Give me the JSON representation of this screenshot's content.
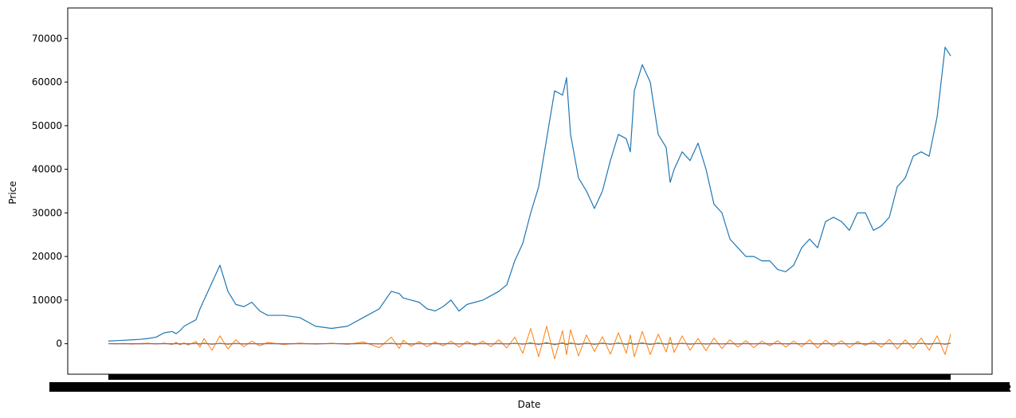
{
  "chart_data": {
    "type": "line",
    "title": "",
    "xlabel": "Date",
    "ylabel": "Price",
    "x_tick_labels_note": "2",
    "ylim": [
      -7000,
      77000
    ],
    "grid": false,
    "legend": "none",
    "y_ticks": [
      0,
      10000,
      20000,
      30000,
      40000,
      50000,
      60000,
      70000
    ],
    "y_tick_labels": [
      "0",
      "10000",
      "20000",
      "30000",
      "40000",
      "50000",
      "60000",
      "70000"
    ],
    "x": [
      0,
      10,
      20,
      30,
      40,
      50,
      60,
      70,
      80,
      85,
      90,
      95,
      100,
      110,
      115,
      120,
      130,
      140,
      150,
      160,
      170,
      180,
      190,
      200,
      220,
      240,
      260,
      280,
      300,
      320,
      340,
      355,
      365,
      370,
      380,
      390,
      400,
      410,
      420,
      430,
      440,
      450,
      460,
      470,
      480,
      490,
      500,
      510,
      520,
      530,
      540,
      550,
      560,
      570,
      575,
      580,
      590,
      600,
      610,
      620,
      630,
      640,
      650,
      655,
      660,
      670,
      680,
      690,
      700,
      705,
      710,
      720,
      730,
      740,
      750,
      760,
      770,
      780,
      790,
      800,
      810,
      820,
      830,
      840,
      850,
      860,
      870,
      880,
      890,
      900,
      910,
      920,
      930,
      940,
      950,
      960,
      970,
      980,
      990,
      1000,
      1010,
      1020,
      1030,
      1040,
      1050,
      1057
    ],
    "series": [
      {
        "color": "#1f77b4",
        "values": [
          600,
          700,
          800,
          900,
          1000,
          1200,
          1500,
          2500,
          2800,
          2300,
          3000,
          4000,
          4500,
          5500,
          8000,
          10000,
          14000,
          18000,
          12000,
          9000,
          8500,
          9500,
          7500,
          6500,
          6500,
          6000,
          4000,
          3500,
          4000,
          6000,
          8000,
          12000,
          11500,
          10500,
          10000,
          9500,
          8000,
          7500,
          8500,
          10000,
          7500,
          9000,
          9500,
          10000,
          11000,
          12000,
          13500,
          19000,
          23000,
          30000,
          36000,
          47000,
          58000,
          57000,
          61000,
          48000,
          38000,
          35000,
          31000,
          35000,
          42000,
          48000,
          47000,
          44000,
          58000,
          64000,
          60000,
          48000,
          45000,
          37000,
          40000,
          44000,
          42000,
          46000,
          40000,
          32000,
          30000,
          24000,
          22000,
          20000,
          20000,
          19000,
          19000,
          17000,
          16500,
          18000,
          22000,
          24000,
          22000,
          28000,
          29000,
          28000,
          26000,
          30000,
          30000,
          26000,
          27000,
          29000,
          36000,
          38000,
          43000,
          44000,
          43000,
          52000,
          68000,
          66000
        ]
      },
      {
        "color": "#ff7f0e",
        "values": [
          50,
          -60,
          80,
          -100,
          60,
          120,
          -80,
          150,
          -200,
          300,
          -250,
          200,
          -300,
          500,
          -800,
          1200,
          -1500,
          1800,
          -1200,
          900,
          -700,
          600,
          -500,
          300,
          -200,
          150,
          -100,
          120,
          -150,
          400,
          -900,
          1500,
          -1100,
          800,
          -600,
          500,
          -700,
          400,
          -500,
          600,
          -800,
          500,
          -400,
          600,
          -700,
          900,
          -1000,
          1500,
          -2200,
          3500,
          -3000,
          4000,
          -3500,
          3000,
          -2500,
          3200,
          -2800,
          2000,
          -1800,
          1600,
          -2400,
          2500,
          -2200,
          2000,
          -3000,
          2800,
          -2500,
          2200,
          -1900,
          1500,
          -2000,
          1800,
          -1500,
          1200,
          -1600,
          1300,
          -1100,
          900,
          -800,
          700,
          -900,
          600,
          -500,
          700,
          -800,
          600,
          -700,
          900,
          -1000,
          800,
          -600,
          700,
          -900,
          500,
          -400,
          600,
          -800,
          1000,
          -1200,
          900,
          -1100,
          1300,
          -1500,
          1800,
          -2500,
          2200
        ]
      },
      {
        "color": "#2ca02c",
        "values": [
          0,
          20,
          -20,
          30,
          -30,
          40,
          -40,
          60,
          -60,
          80,
          -80,
          50,
          -50,
          100,
          -100,
          150,
          -150,
          120,
          -120,
          90,
          -90,
          60,
          -60,
          40,
          -40,
          30,
          -30,
          50,
          -50,
          80,
          -80,
          120,
          -120,
          100,
          -100,
          70,
          -70,
          60,
          -60,
          80,
          -80,
          60,
          -60,
          70,
          -70,
          90,
          -90,
          130,
          -130,
          200,
          -200,
          250,
          -250,
          220,
          -220,
          200,
          -200,
          180,
          -180,
          160,
          -160,
          180,
          -180,
          170,
          -170,
          190,
          -190,
          160,
          -160,
          140,
          -140,
          120,
          -120,
          100,
          -100,
          90,
          -90,
          80,
          -80,
          70,
          -70,
          60,
          -60,
          70,
          -70,
          60,
          -60,
          80,
          -80,
          70,
          -70,
          60,
          -60,
          70,
          -70,
          80,
          -80,
          90,
          -90,
          100,
          -100,
          120,
          -120,
          150,
          -150,
          140
        ]
      },
      {
        "color": "#d62728",
        "values": [
          0,
          10,
          -10,
          15,
          -15,
          20,
          -20,
          25,
          -25,
          30,
          -30,
          20,
          -20,
          40,
          -40,
          60,
          -60,
          50,
          -50,
          40,
          -40,
          30,
          -30,
          20,
          -20,
          15,
          -15,
          20,
          -20,
          30,
          -30,
          50,
          -50,
          40,
          -40,
          30,
          -30,
          25,
          -25,
          30,
          -30,
          25,
          -25,
          30,
          -30,
          35,
          -35,
          50,
          -50,
          80,
          -80,
          100,
          -100,
          90,
          -90,
          80,
          -80,
          70,
          -70,
          60,
          -60,
          70,
          -70,
          65,
          -65,
          75,
          -75,
          60,
          -60,
          55,
          -55,
          50,
          -50,
          40,
          -40,
          35,
          -35,
          30,
          -30,
          25,
          -25,
          20,
          -20,
          25,
          -25,
          20,
          -20,
          30,
          -30,
          25,
          -25,
          20,
          -20,
          25,
          -25,
          30,
          -30,
          35,
          -35,
          40,
          -40,
          45,
          -45,
          60,
          -60,
          55
        ]
      },
      {
        "color": "#9467bd",
        "values": [
          0,
          5,
          -5,
          8,
          -8,
          10,
          -10,
          12,
          -12,
          15,
          -15,
          10,
          -10,
          20,
          -20,
          30,
          -30,
          25,
          -25,
          20,
          -20,
          15,
          -15,
          10,
          -10,
          8,
          -8,
          10,
          -10,
          15,
          -15,
          25,
          -25,
          20,
          -20,
          15,
          -15,
          12,
          -12,
          15,
          -15,
          12,
          -12,
          15,
          -15,
          18,
          -18,
          25,
          -25,
          40,
          -40,
          50,
          -50,
          45,
          -45,
          40,
          -40,
          35,
          -35,
          30,
          -30,
          35,
          -35,
          32,
          -32,
          38,
          -38,
          30,
          -30,
          28,
          -28,
          25,
          -25,
          20,
          -20,
          18,
          -18,
          15,
          -15,
          12,
          -12,
          10,
          -10,
          12,
          -12,
          10,
          -10,
          15,
          -15,
          12,
          -12,
          10,
          -10,
          12,
          -12,
          15,
          -15,
          18,
          -18,
          20,
          -20,
          22,
          -22,
          30,
          -30,
          28
        ]
      }
    ]
  }
}
